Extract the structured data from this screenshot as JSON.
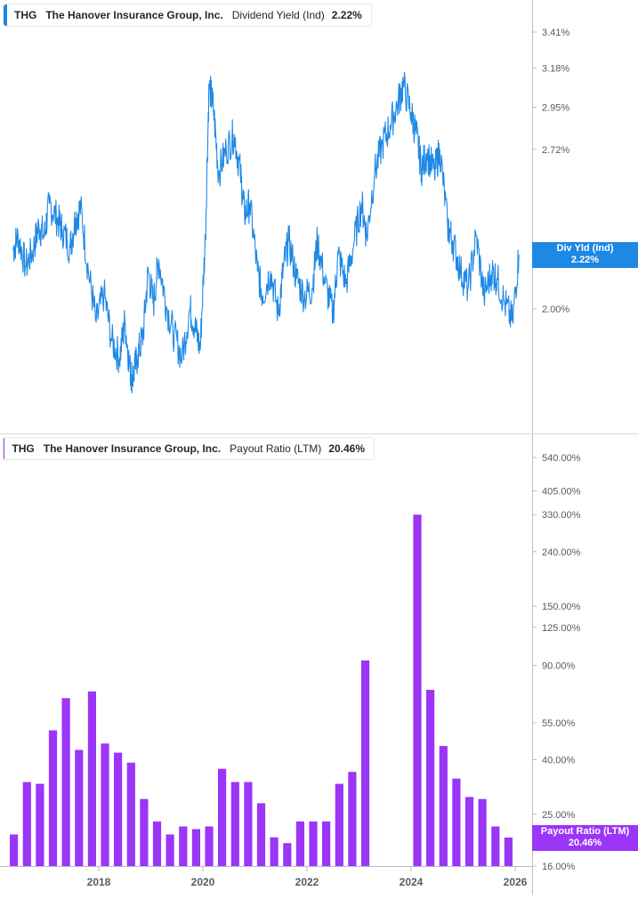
{
  "legend_top": {
    "ticker": "THG",
    "company": "The Hanover Insurance Group, Inc.",
    "metric": "Dividend Yield (Ind)",
    "value": "2.22%"
  },
  "legend_bottom": {
    "ticker": "THG",
    "company": "The Hanover Insurance Group, Inc.",
    "metric": "Payout Ratio (LTM)",
    "value": "20.46%"
  },
  "flag_top": {
    "label": "Div Yld (Ind)",
    "value": "2.22%"
  },
  "flag_bottom": {
    "label": "Payout Ratio (LTM)",
    "value": "20.46%"
  },
  "colors": {
    "yield_line": "#1e88e5",
    "payout_bar": "#9b35f7",
    "axis": "#b8bcc4",
    "text": "#555b66"
  },
  "chart_data": [
    {
      "type": "line",
      "title": "THG The Hanover Insurance Group, Inc. Dividend Yield (Ind) 2.22%",
      "ylabel": "",
      "y_scale": "log",
      "y_ticks": [
        "3.41%",
        "3.18%",
        "2.95%",
        "2.72%",
        "2.00%"
      ],
      "y_tick_values": [
        3.41,
        3.18,
        2.95,
        2.72,
        2.0
      ],
      "xlim": [
        2016.35,
        2026.7
      ],
      "last_value": 2.22,
      "series": [
        {
          "values_description_free": true,
          "x": [
            2016.35,
            2016.45,
            2016.6,
            2016.75,
            2016.85,
            2016.95,
            2017.05,
            2017.2,
            2017.3,
            2017.45,
            2017.55,
            2017.65,
            2017.8,
            2017.95,
            2018.1,
            2018.25,
            2018.4,
            2018.5,
            2018.6,
            2018.65,
            2018.75,
            2018.85,
            2018.95,
            2019.05,
            2019.15,
            2019.3,
            2019.45,
            2019.6,
            2019.75,
            2019.85,
            2019.95,
            2020.05,
            2020.12,
            2020.2,
            2020.3,
            2020.45,
            2020.6,
            2020.72,
            2020.8,
            2020.9,
            2021.05,
            2021.15,
            2021.3,
            2021.45,
            2021.55,
            2021.65,
            2021.8,
            2021.95,
            2022.1,
            2022.2,
            2022.35,
            2022.5,
            2022.6,
            2022.75,
            2022.9,
            2023.05,
            2023.15,
            2023.3,
            2023.45,
            2023.6,
            2023.75,
            2023.85,
            2024.0,
            2024.1,
            2024.2,
            2024.3,
            2024.45,
            2024.55,
            2024.7,
            2024.8,
            2024.95,
            2025.1,
            2025.25,
            2025.4,
            2025.55,
            2025.65,
            2025.8,
            2025.95,
            2026.07
          ],
          "values": [
            2.24,
            2.3,
            2.17,
            2.25,
            2.35,
            2.3,
            2.45,
            2.38,
            2.33,
            2.25,
            2.38,
            2.43,
            2.15,
            1.95,
            2.06,
            1.88,
            1.82,
            1.95,
            1.78,
            1.75,
            1.83,
            1.9,
            2.15,
            2.02,
            2.2,
            2.01,
            1.9,
            1.82,
            2.0,
            1.93,
            1.85,
            2.3,
            3.08,
            2.95,
            2.6,
            2.72,
            2.8,
            2.6,
            2.4,
            2.45,
            2.15,
            2.05,
            2.15,
            1.98,
            2.17,
            2.28,
            2.12,
            2.05,
            2.08,
            2.28,
            2.1,
            1.98,
            2.22,
            2.1,
            2.27,
            2.45,
            2.3,
            2.6,
            2.75,
            2.85,
            2.98,
            3.08,
            2.92,
            2.8,
            2.62,
            2.7,
            2.6,
            2.72,
            2.35,
            2.28,
            2.15,
            2.08,
            2.3,
            2.05,
            2.15,
            2.12,
            2.02,
            1.95,
            2.22
          ]
        }
      ]
    },
    {
      "type": "bar",
      "title": "THG The Hanover Insurance Group, Inc. Payout Ratio (LTM) 20.46%",
      "ylabel": "",
      "y_scale": "log",
      "y_ticks": [
        "540.00%",
        "405.00%",
        "330.00%",
        "240.00%",
        "150.00%",
        "125.00%",
        "90.00%",
        "55.00%",
        "40.00%",
        "25.00%",
        "16.00%"
      ],
      "y_tick_values": [
        540,
        405,
        330,
        240,
        150,
        125,
        90,
        55,
        40,
        25,
        16
      ],
      "x_tick_labels": [
        "2018",
        "2020",
        "2022",
        "2024",
        "2026"
      ],
      "x_tick_values": [
        2018,
        2020,
        2022,
        2024,
        2026
      ],
      "last_value": 20.46,
      "x": [
        2016.37,
        2016.62,
        2016.87,
        2017.12,
        2017.37,
        2017.62,
        2017.87,
        2018.12,
        2018.37,
        2018.62,
        2018.87,
        2019.12,
        2019.37,
        2019.62,
        2019.87,
        2020.12,
        2020.37,
        2020.62,
        2020.87,
        2021.12,
        2021.37,
        2021.62,
        2021.87,
        2022.12,
        2022.37,
        2022.62,
        2022.87,
        2023.12,
        2023.37,
        2023.62,
        2023.87,
        2024.12,
        2024.37,
        2024.62,
        2024.87,
        2025.12,
        2025.37,
        2025.62,
        2025.87
      ],
      "values": [
        21,
        33,
        32.5,
        51.5,
        68,
        43.5,
        72,
        46,
        42.5,
        39,
        28.5,
        23.5,
        21,
        22.5,
        22,
        22.5,
        37,
        33,
        33,
        27.5,
        20.5,
        19.5,
        23.5,
        23.5,
        23.5,
        32.5,
        36,
        94,
        null,
        null,
        null,
        330,
        73,
        45,
        34,
        29,
        28.5,
        22.5,
        20.46
      ]
    }
  ]
}
